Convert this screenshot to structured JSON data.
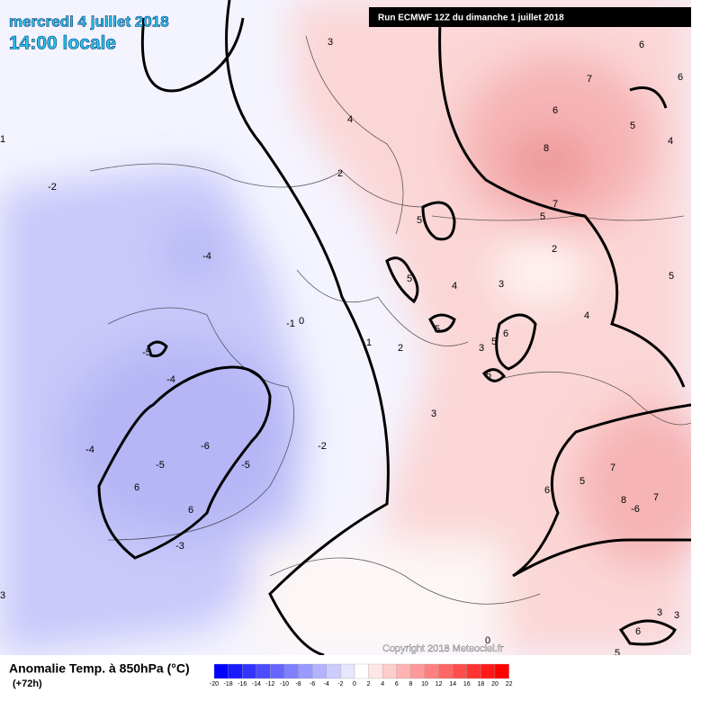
{
  "header": {
    "title": "mercredi 4 juillet 2018",
    "time": "14:00 locale",
    "run": "Run ECMWF 12Z du dimanche 1 juillet 2018"
  },
  "map": {
    "copyright": "Copyright 2018 Meteociel.fr",
    "contour_labels": [
      3,
      6,
      7,
      6,
      4,
      6,
      5,
      4,
      1,
      -2,
      8,
      2,
      7,
      5,
      5,
      2,
      -4,
      5,
      4,
      3,
      5,
      4,
      -1,
      0,
      5,
      6,
      1,
      2,
      3,
      5,
      -5,
      -4,
      5,
      3,
      -2,
      -4,
      -6,
      -5,
      -5,
      7,
      6,
      5,
      6,
      6,
      8,
      7,
      -6,
      -3,
      3,
      3,
      3,
      6,
      5,
      0
    ]
  },
  "legend": {
    "title": "Anomalie Temp. à 850hPa (°C)",
    "lead": "(+72h)",
    "ticks": [
      -20,
      -18,
      -16,
      -14,
      -12,
      -10,
      -8,
      -6,
      -4,
      -2,
      0,
      2,
      4,
      6,
      8,
      10,
      12,
      14,
      16,
      18,
      20,
      22
    ],
    "colors": [
      "#0000ff",
      "#1a1aff",
      "#3333ff",
      "#4d4dff",
      "#6666ff",
      "#7f7fff",
      "#9999ff",
      "#b3b3ff",
      "#ccccff",
      "#e6e6ff",
      "#ffffff",
      "#ffe6e6",
      "#ffcccc",
      "#ffb3b3",
      "#ff9999",
      "#ff8080",
      "#ff6666",
      "#ff4d4d",
      "#ff3333",
      "#ff1a1a",
      "#ff0000"
    ]
  }
}
